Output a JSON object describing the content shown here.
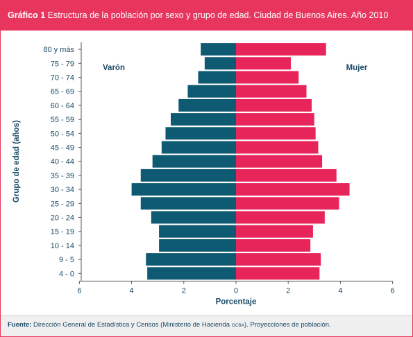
{
  "header": {
    "figure_label": "Gráfico 1",
    "title": "Estructura de la población por sexo y grupo de edad. Ciudad de Buenos Aires. Año 2010"
  },
  "footer": {
    "source_label": "Fuente:",
    "source_text": "Dirección General de Estadística y Censos (Ministerio de Hacienda",
    "source_abbrev": "GCBA",
    "source_tail": "). Proyecciones de población."
  },
  "colors": {
    "header_bg": "#e8355e",
    "varon": "#0f5a73",
    "mujer": "#e8255a",
    "text": "#1b4965"
  },
  "chart_data": {
    "type": "bar",
    "orientation": "horizontal",
    "subtype": "population-pyramid",
    "categories": [
      "80 y más",
      "75 - 79",
      "70 - 74",
      "65 - 69",
      "60 - 64",
      "55 - 59",
      "50 - 54",
      "45 - 49",
      "40 - 44",
      "35 - 39",
      "30 - 34",
      "25 - 29",
      "20 - 24",
      "15 - 19",
      "10 - 14",
      "9 - 5",
      "4 - 0"
    ],
    "series": [
      {
        "name": "Varón",
        "side": "left",
        "values": [
          1.35,
          1.2,
          1.45,
          1.85,
          2.2,
          2.5,
          2.7,
          2.85,
          3.2,
          3.65,
          4.0,
          3.65,
          3.25,
          2.95,
          2.95,
          3.45,
          3.4
        ]
      },
      {
        "name": "Mujer",
        "side": "right",
        "values": [
          3.45,
          2.1,
          2.4,
          2.7,
          2.9,
          3.0,
          3.05,
          3.15,
          3.3,
          3.85,
          4.35,
          3.95,
          3.4,
          2.95,
          2.85,
          3.25,
          3.2
        ]
      }
    ],
    "x_ticks": [
      "6",
      "4",
      "2",
      "0",
      "2",
      "4",
      "6"
    ],
    "xlim": [
      -6,
      6
    ],
    "xlabel": "Porcentaje",
    "ylabel": "Grupo de edad (años)",
    "grid": false,
    "legend_placement": "inside-top"
  }
}
